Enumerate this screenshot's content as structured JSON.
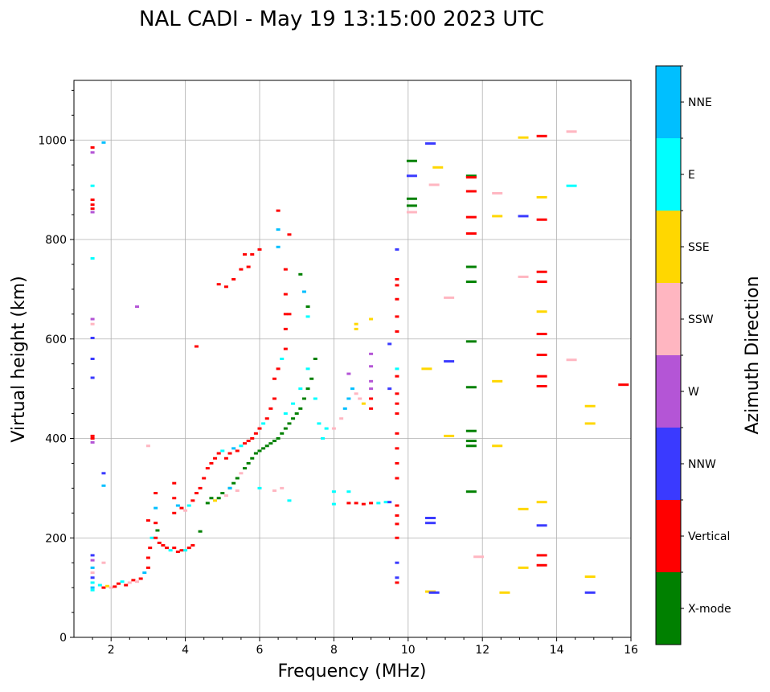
{
  "chart_data": {
    "type": "scatter",
    "title": "NAL CADI - May 19 13:15:00 2023 UTC",
    "xlabel": "Frequency (MHz)",
    "ylabel": "Virtual height (km)",
    "xlim": [
      1,
      16
    ],
    "ylim": [
      0,
      1120
    ],
    "xticks": [
      2,
      4,
      6,
      8,
      10,
      12,
      14,
      16
    ],
    "yticks": [
      0,
      200,
      400,
      600,
      800,
      1000
    ],
    "grid": true,
    "colorbar": {
      "label": "Azimuth Direction",
      "categories": [
        {
          "name": "X-mode",
          "color": "#008000"
        },
        {
          "name": "Vertical",
          "color": "#ff0000"
        },
        {
          "name": "NNW",
          "color": "#3a3aff"
        },
        {
          "name": "W",
          "color": "#b455d6"
        },
        {
          "name": "SSW",
          "color": "#ffb6c1"
        },
        {
          "name": "SSE",
          "color": "#ffd700"
        },
        {
          "name": "E",
          "color": "#00ffff"
        },
        {
          "name": "NNE",
          "color": "#00bfff"
        }
      ]
    },
    "points_format": [
      "frequency_mhz",
      "height_km",
      "direction_index"
    ],
    "points": [
      [
        1.5,
        985,
        1
      ],
      [
        1.5,
        975,
        3
      ],
      [
        1.5,
        908,
        6
      ],
      [
        1.5,
        880,
        1
      ],
      [
        1.5,
        870,
        1
      ],
      [
        1.5,
        862,
        1
      ],
      [
        1.5,
        855,
        3
      ],
      [
        1.5,
        762,
        6
      ],
      [
        1.5,
        640,
        3
      ],
      [
        1.5,
        630,
        4
      ],
      [
        1.5,
        602,
        2
      ],
      [
        1.5,
        560,
        2
      ],
      [
        1.5,
        522,
        2
      ],
      [
        1.5,
        405,
        1
      ],
      [
        1.5,
        400,
        1
      ],
      [
        1.5,
        392,
        3
      ],
      [
        1.5,
        165,
        2
      ],
      [
        1.5,
        155,
        3
      ],
      [
        1.5,
        140,
        7
      ],
      [
        1.5,
        130,
        4
      ],
      [
        1.5,
        120,
        2
      ],
      [
        1.5,
        110,
        6
      ],
      [
        1.5,
        100,
        7
      ],
      [
        1.5,
        95,
        6
      ],
      [
        1.8,
        995,
        7
      ],
      [
        1.8,
        330,
        2
      ],
      [
        1.8,
        305,
        7
      ],
      [
        1.8,
        150,
        4
      ],
      [
        2.7,
        665,
        3
      ],
      [
        1.7,
        105,
        6
      ],
      [
        1.8,
        100,
        1
      ],
      [
        1.9,
        103,
        5
      ],
      [
        2.0,
        100,
        4
      ],
      [
        2.1,
        102,
        1
      ],
      [
        2.2,
        108,
        1
      ],
      [
        2.3,
        112,
        6
      ],
      [
        2.4,
        105,
        1
      ],
      [
        2.5,
        110,
        4
      ],
      [
        2.6,
        115,
        1
      ],
      [
        2.7,
        112,
        4
      ],
      [
        2.8,
        118,
        1
      ],
      [
        2.9,
        130,
        7
      ],
      [
        3.0,
        140,
        1
      ],
      [
        3.0,
        160,
        1
      ],
      [
        3.05,
        180,
        1
      ],
      [
        3.1,
        200,
        6
      ],
      [
        3.0,
        235,
        1
      ],
      [
        3.0,
        385,
        4
      ],
      [
        3.2,
        200,
        1
      ],
      [
        3.2,
        230,
        1
      ],
      [
        3.2,
        260,
        7
      ],
      [
        3.2,
        290,
        1
      ],
      [
        3.25,
        215,
        0
      ],
      [
        3.3,
        190,
        1
      ],
      [
        3.4,
        185,
        1
      ],
      [
        3.5,
        180,
        1
      ],
      [
        3.6,
        175,
        6
      ],
      [
        3.7,
        180,
        1
      ],
      [
        3.8,
        172,
        1
      ],
      [
        3.9,
        175,
        1
      ],
      [
        4.0,
        175,
        6
      ],
      [
        4.1,
        180,
        1
      ],
      [
        4.2,
        185,
        1
      ],
      [
        3.7,
        250,
        1
      ],
      [
        3.7,
        280,
        1
      ],
      [
        3.7,
        310,
        1
      ],
      [
        3.8,
        265,
        7
      ],
      [
        3.9,
        260,
        1
      ],
      [
        4.0,
        255,
        4
      ],
      [
        4.1,
        265,
        6
      ],
      [
        4.2,
        275,
        1
      ],
      [
        4.3,
        290,
        1
      ],
      [
        4.4,
        300,
        1
      ],
      [
        4.5,
        320,
        1
      ],
      [
        4.6,
        340,
        1
      ],
      [
        4.4,
        213,
        0
      ],
      [
        4.7,
        350,
        1
      ],
      [
        4.8,
        360,
        1
      ],
      [
        4.9,
        370,
        1
      ],
      [
        5.0,
        375,
        6
      ],
      [
        5.1,
        360,
        1
      ],
      [
        5.2,
        370,
        1
      ],
      [
        5.3,
        380,
        7
      ],
      [
        5.4,
        375,
        1
      ],
      [
        5.5,
        385,
        6
      ],
      [
        5.6,
        390,
        1
      ],
      [
        5.7,
        395,
        1
      ],
      [
        5.8,
        400,
        1
      ],
      [
        5.9,
        410,
        1
      ],
      [
        6.0,
        420,
        1
      ],
      [
        6.1,
        430,
        6
      ],
      [
        6.2,
        440,
        1
      ],
      [
        6.3,
        460,
        1
      ],
      [
        6.4,
        480,
        1
      ],
      [
        6.4,
        520,
        1
      ],
      [
        6.5,
        540,
        1
      ],
      [
        6.6,
        560,
        6
      ],
      [
        6.7,
        580,
        1
      ],
      [
        6.7,
        620,
        1
      ],
      [
        6.8,
        650,
        1
      ],
      [
        4.6,
        270,
        0
      ],
      [
        4.7,
        280,
        0
      ],
      [
        4.8,
        275,
        5
      ],
      [
        4.9,
        280,
        0
      ],
      [
        5.0,
        290,
        0
      ],
      [
        5.1,
        285,
        4
      ],
      [
        5.2,
        300,
        0
      ],
      [
        5.3,
        310,
        0
      ],
      [
        5.4,
        320,
        0
      ],
      [
        5.5,
        330,
        4
      ],
      [
        5.6,
        340,
        0
      ],
      [
        5.7,
        350,
        0
      ],
      [
        5.8,
        360,
        0
      ],
      [
        5.9,
        370,
        0
      ],
      [
        6.0,
        375,
        0
      ],
      [
        6.1,
        380,
        0
      ],
      [
        6.2,
        385,
        0
      ],
      [
        6.3,
        390,
        0
      ],
      [
        6.4,
        395,
        0
      ],
      [
        6.5,
        400,
        0
      ],
      [
        6.6,
        410,
        0
      ],
      [
        6.7,
        420,
        0
      ],
      [
        6.8,
        430,
        0
      ],
      [
        6.9,
        440,
        0
      ],
      [
        7.0,
        450,
        0
      ],
      [
        7.1,
        460,
        0
      ],
      [
        7.2,
        480,
        0
      ],
      [
        7.3,
        500,
        0
      ],
      [
        7.4,
        520,
        0
      ],
      [
        7.5,
        560,
        0
      ],
      [
        6.7,
        450,
        6
      ],
      [
        6.9,
        470,
        6
      ],
      [
        7.1,
        500,
        6
      ],
      [
        7.3,
        540,
        6
      ],
      [
        7.5,
        480,
        6
      ],
      [
        7.6,
        430,
        6
      ],
      [
        7.8,
        420,
        6
      ],
      [
        7.7,
        400,
        6
      ],
      [
        8.0,
        420,
        4
      ],
      [
        8.2,
        440,
        4
      ],
      [
        8.3,
        460,
        7
      ],
      [
        8.4,
        480,
        7
      ],
      [
        8.5,
        500,
        7
      ],
      [
        8.6,
        490,
        4
      ],
      [
        8.7,
        480,
        4
      ],
      [
        8.8,
        470,
        5
      ],
      [
        8.4,
        530,
        3
      ],
      [
        8.6,
        620,
        5
      ],
      [
        8.6,
        630,
        5
      ],
      [
        9.0,
        640,
        5
      ],
      [
        9.0,
        570,
        3
      ],
      [
        9.0,
        545,
        3
      ],
      [
        9.0,
        515,
        3
      ],
      [
        9.0,
        500,
        3
      ],
      [
        9.0,
        480,
        1
      ],
      [
        9.0,
        460,
        1
      ],
      [
        9.5,
        590,
        2
      ],
      [
        9.5,
        500,
        2
      ],
      [
        4.3,
        585,
        1
      ],
      [
        4.9,
        710,
        1
      ],
      [
        5.1,
        705,
        1
      ],
      [
        5.3,
        720,
        1
      ],
      [
        5.5,
        740,
        1
      ],
      [
        5.6,
        770,
        1
      ],
      [
        5.7,
        745,
        1
      ],
      [
        5.8,
        770,
        1
      ],
      [
        6.0,
        780,
        1
      ],
      [
        6.5,
        785,
        7
      ],
      [
        6.5,
        820,
        7
      ],
      [
        6.5,
        858,
        1
      ],
      [
        6.7,
        740,
        1
      ],
      [
        6.7,
        690,
        1
      ],
      [
        6.7,
        650,
        1
      ],
      [
        6.8,
        810,
        1
      ],
      [
        7.2,
        695,
        7
      ],
      [
        7.3,
        665,
        0
      ],
      [
        7.1,
        730,
        0
      ],
      [
        7.3,
        645,
        6
      ],
      [
        5.2,
        300,
        7
      ],
      [
        5.4,
        295,
        4
      ],
      [
        6.0,
        300,
        6
      ],
      [
        6.4,
        295,
        4
      ],
      [
        6.6,
        300,
        4
      ],
      [
        6.8,
        275,
        6
      ],
      [
        8.0,
        293,
        6
      ],
      [
        8.0,
        268,
        6
      ],
      [
        8.4,
        293,
        6
      ],
      [
        8.4,
        270,
        1
      ],
      [
        8.6,
        270,
        1
      ],
      [
        8.8,
        268,
        1
      ],
      [
        9.0,
        270,
        1
      ],
      [
        9.2,
        270,
        6
      ],
      [
        9.4,
        272,
        6
      ],
      [
        9.5,
        272,
        2
      ],
      [
        9.7,
        780,
        2
      ],
      [
        9.7,
        720,
        1
      ],
      [
        9.7,
        708,
        1
      ],
      [
        9.7,
        680,
        1
      ],
      [
        9.7,
        645,
        1
      ],
      [
        9.7,
        615,
        1
      ],
      [
        9.7,
        540,
        6
      ],
      [
        9.7,
        525,
        1
      ],
      [
        9.7,
        490,
        1
      ],
      [
        9.7,
        470,
        1
      ],
      [
        9.7,
        450,
        1
      ],
      [
        9.7,
        410,
        1
      ],
      [
        9.7,
        380,
        1
      ],
      [
        9.7,
        350,
        1
      ],
      [
        9.7,
        320,
        1
      ],
      [
        9.7,
        265,
        1
      ],
      [
        9.7,
        245,
        1
      ],
      [
        9.7,
        228,
        1
      ],
      [
        9.7,
        200,
        1
      ],
      [
        9.7,
        150,
        2
      ],
      [
        9.7,
        120,
        2
      ],
      [
        9.7,
        110,
        1
      ],
      [
        10.1,
        958,
        0
      ],
      [
        10.1,
        928,
        2
      ],
      [
        10.1,
        882,
        0
      ],
      [
        10.1,
        868,
        0
      ],
      [
        10.1,
        855,
        4
      ],
      [
        10.6,
        993,
        2
      ],
      [
        10.8,
        945,
        5
      ],
      [
        10.7,
        910,
        4
      ],
      [
        10.5,
        540,
        5
      ],
      [
        10.6,
        240,
        2
      ],
      [
        10.6,
        230,
        2
      ],
      [
        10.6,
        92,
        5
      ],
      [
        10.7,
        90,
        2
      ],
      [
        11.1,
        683,
        4
      ],
      [
        11.1,
        405,
        5
      ],
      [
        11.1,
        555,
        2
      ],
      [
        11.7,
        928,
        0
      ],
      [
        11.7,
        925,
        1
      ],
      [
        11.7,
        897,
        1
      ],
      [
        11.7,
        845,
        1
      ],
      [
        11.7,
        812,
        1
      ],
      [
        11.7,
        745,
        0
      ],
      [
        11.7,
        715,
        0
      ],
      [
        11.7,
        595,
        0
      ],
      [
        11.7,
        503,
        0
      ],
      [
        11.7,
        415,
        0
      ],
      [
        11.7,
        395,
        0
      ],
      [
        11.7,
        385,
        0
      ],
      [
        11.7,
        293,
        0
      ],
      [
        11.9,
        162,
        4
      ],
      [
        12.4,
        893,
        4
      ],
      [
        12.4,
        847,
        5
      ],
      [
        12.4,
        515,
        5
      ],
      [
        12.4,
        385,
        5
      ],
      [
        12.6,
        90,
        5
      ],
      [
        13.1,
        1005,
        5
      ],
      [
        13.1,
        847,
        2
      ],
      [
        13.1,
        725,
        4
      ],
      [
        13.1,
        258,
        5
      ],
      [
        13.1,
        140,
        5
      ],
      [
        13.6,
        1008,
        1
      ],
      [
        13.6,
        885,
        5
      ],
      [
        13.6,
        840,
        1
      ],
      [
        13.6,
        735,
        1
      ],
      [
        13.6,
        715,
        1
      ],
      [
        13.6,
        655,
        5
      ],
      [
        13.6,
        610,
        1
      ],
      [
        13.6,
        568,
        1
      ],
      [
        13.6,
        525,
        1
      ],
      [
        13.6,
        505,
        1
      ],
      [
        13.6,
        272,
        5
      ],
      [
        13.6,
        225,
        2
      ],
      [
        13.6,
        165,
        1
      ],
      [
        13.6,
        145,
        1
      ],
      [
        14.4,
        1017,
        4
      ],
      [
        14.4,
        908,
        6
      ],
      [
        14.4,
        558,
        4
      ],
      [
        14.9,
        465,
        5
      ],
      [
        14.9,
        430,
        5
      ],
      [
        14.9,
        122,
        5
      ],
      [
        14.9,
        90,
        2
      ],
      [
        15.8,
        508,
        1
      ]
    ]
  }
}
